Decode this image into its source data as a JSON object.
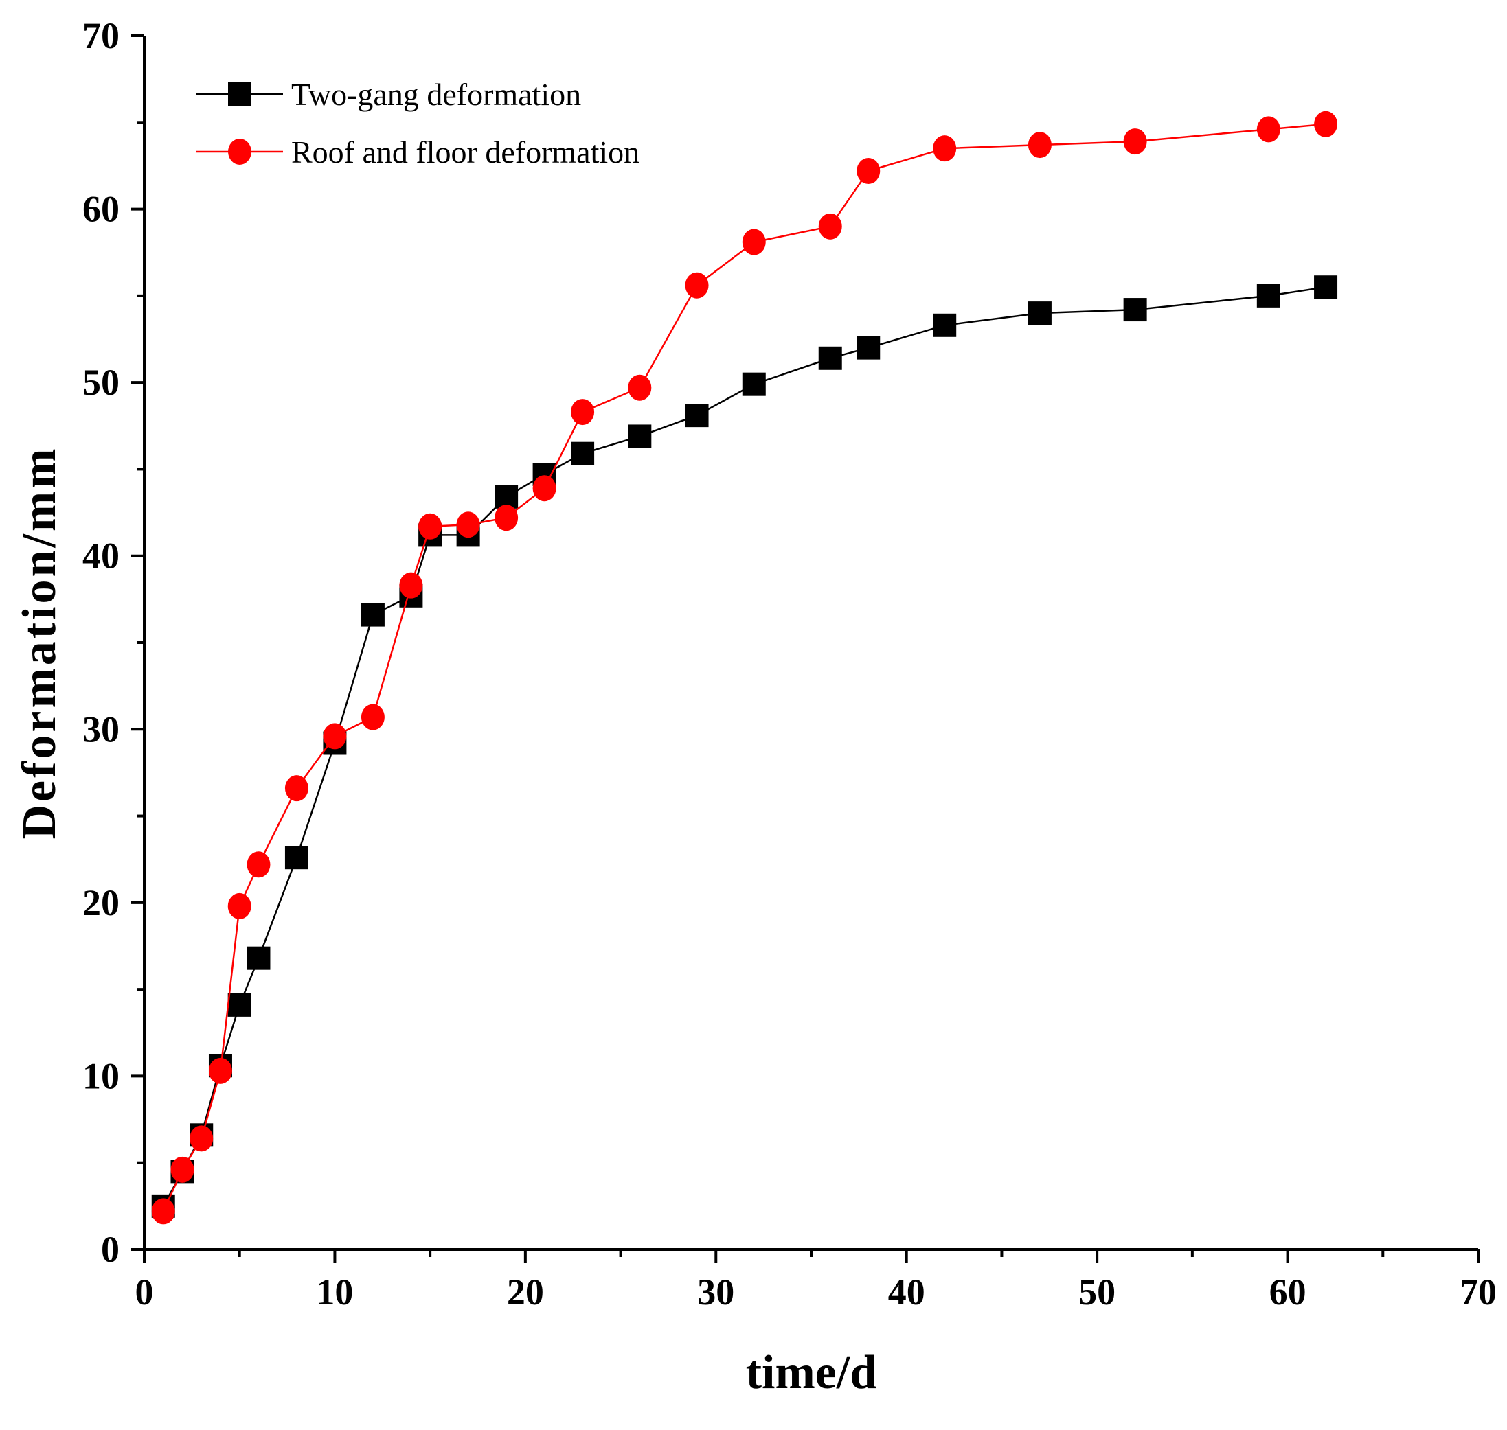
{
  "chart_data": {
    "type": "line",
    "title": "",
    "xlabel": "time/d",
    "ylabel": "Deformation/mm",
    "xlim": [
      0,
      70
    ],
    "ylim": [
      0,
      70
    ],
    "x_ticks": [
      "0",
      "10",
      "20",
      "30",
      "40",
      "50",
      "60",
      "70"
    ],
    "y_ticks": [
      "0",
      "10",
      "20",
      "30",
      "40",
      "50",
      "60",
      "70"
    ],
    "grid": false,
    "legend_position": "top-left",
    "series": [
      {
        "name": "Two-gang deformation",
        "color": "#000000",
        "marker": "square",
        "x": [
          1,
          2,
          3,
          4,
          5,
          6,
          8,
          10,
          12,
          14,
          15,
          17,
          19,
          21,
          23,
          26,
          29,
          32,
          36,
          38,
          42,
          47,
          52,
          59,
          62
        ],
        "y": [
          2.5,
          4.5,
          6.6,
          10.6,
          14.1,
          16.8,
          22.6,
          29.2,
          36.6,
          37.7,
          41.2,
          41.2,
          43.4,
          44.7,
          45.9,
          46.9,
          48.1,
          49.9,
          51.4,
          52.0,
          53.3,
          54.0,
          54.2,
          55.0,
          55.5
        ]
      },
      {
        "name": "Roof and floor deformation",
        "color": "#ff0000",
        "marker": "circle",
        "x": [
          1,
          2,
          3,
          4,
          5,
          6,
          8,
          10,
          12,
          14,
          15,
          17,
          19,
          21,
          23,
          26,
          29,
          32,
          36,
          38,
          42,
          47,
          52,
          59,
          62
        ],
        "y": [
          2.2,
          4.6,
          6.4,
          10.3,
          19.8,
          22.2,
          26.6,
          29.6,
          30.7,
          38.3,
          41.7,
          41.8,
          42.2,
          43.9,
          48.3,
          49.7,
          55.6,
          58.1,
          59.0,
          62.2,
          63.5,
          63.7,
          63.9,
          64.6,
          64.9
        ]
      }
    ]
  }
}
